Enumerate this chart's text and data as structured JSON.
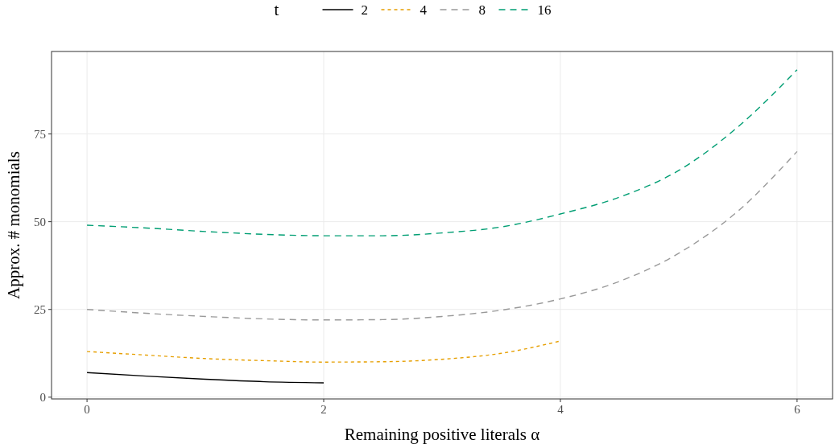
{
  "chart_data": {
    "type": "line",
    "xlabel": "Remaining positive literals α",
    "ylabel": "Approx. # monomials",
    "legend_title": "t",
    "legend": "top",
    "grid": true,
    "xlim": [
      -0.3,
      6.3
    ],
    "ylim": [
      -0.5,
      98.5
    ],
    "xticks": [
      0,
      2,
      4,
      6
    ],
    "yticks": [
      0,
      25,
      50,
      75
    ],
    "series": [
      {
        "name": "2",
        "color": "#000000",
        "line_style": "solid",
        "x": [
          0,
          0.5,
          1,
          1.5,
          2
        ],
        "values": [
          7,
          6,
          5.1,
          4.4,
          4.1
        ]
      },
      {
        "name": "4",
        "color": "#e69f00",
        "line_style": "dotted",
        "x": [
          0,
          0.5,
          1,
          1.5,
          2,
          2.5,
          3,
          3.5,
          4
        ],
        "values": [
          13,
          12,
          11,
          10.4,
          10,
          10.1,
          10.8,
          12.5,
          16
        ]
      },
      {
        "name": "8",
        "color": "#999999",
        "line_style": "dashed",
        "x": [
          0,
          0.5,
          1,
          1.5,
          2,
          2.5,
          3,
          3.5,
          4,
          4.5,
          5,
          5.5,
          6
        ],
        "values": [
          25,
          23.9,
          23,
          22.3,
          22,
          22.1,
          23,
          24.8,
          28,
          33,
          41,
          53,
          70
        ]
      },
      {
        "name": "16",
        "color": "#009e73",
        "line_style": "dashed",
        "x": [
          0,
          0.5,
          1,
          1.5,
          2,
          2.5,
          3,
          3.5,
          4,
          4.5,
          5,
          5.5,
          6
        ],
        "values": [
          49,
          48.2,
          47.2,
          46.4,
          46,
          46,
          46.8,
          48.5,
          52.2,
          57,
          64.6,
          77,
          93.3
        ]
      }
    ]
  }
}
